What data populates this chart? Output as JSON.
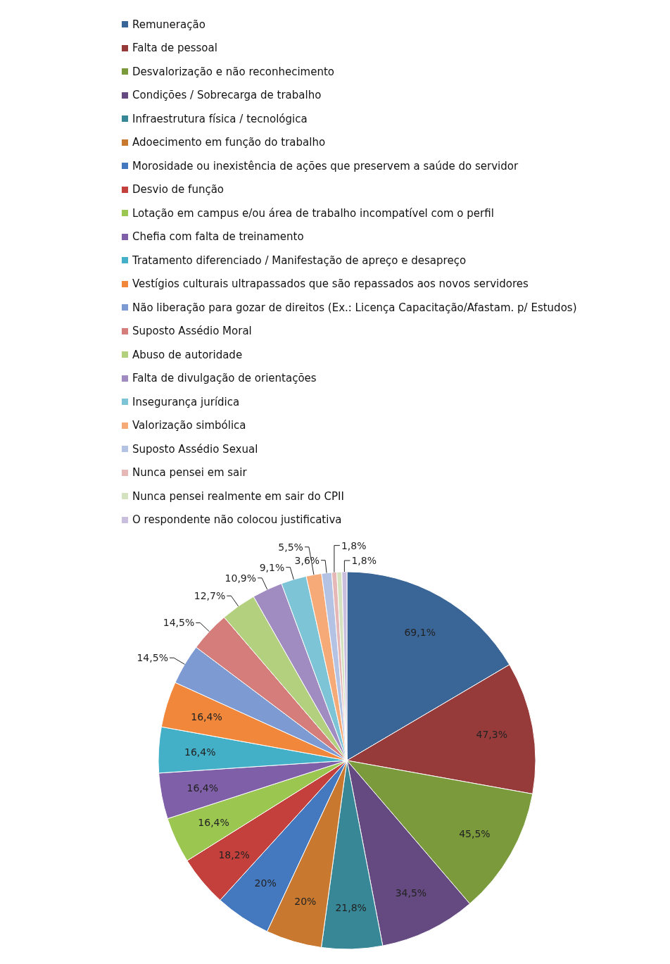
{
  "chart_data": {
    "type": "pie",
    "legend": "top left",
    "categories": [
      "Remuneração",
      "Falta de pessoal",
      "Desvalorização e não reconhecimento",
      "Condições / Sobrecarga de trabalho",
      "Infraestrutura física / tecnológica",
      "Adoecimento em função do trabalho",
      "Morosidade ou inexistência  de ações que preservem a saúde do servidor",
      "Desvio de função",
      "Lotação em campus e/ou área de trabalho incompatível com o perfil",
      "Chefia com falta de treinamento",
      "Tratamento diferenciado / Manifestação de apreço e desapreço",
      "Vestígios culturais ultrapassados que são repassados aos novos servidores",
      "Não liberação para gozar de direitos (Ex.: Licença Capacitação/Afastam. p/ Estudos)",
      "Suposto Assédio Moral",
      "Abuso de autoridade",
      "Falta de divulgação de orientações",
      "Insegurança jurídica",
      "Valorização simbólica",
      "Suposto Assédio Sexual",
      "Nunca pensei em sair",
      "Nunca pensei realmente em sair do CPII",
      "O respondente não colocou justificativa"
    ],
    "values": [
      69.1,
      47.3,
      45.5,
      34.5,
      21.8,
      20,
      20,
      18.2,
      16.4,
      16.4,
      16.4,
      16.4,
      14.5,
      14.5,
      12.7,
      10.9,
      9.1,
      5.5,
      3.6,
      1.8,
      1.8,
      1.8
    ],
    "value_labels": [
      "69,1%",
      "47,3%",
      "45,5%",
      "34,5%",
      "21,8%",
      "20%",
      "20%",
      "18,2%",
      "16,4%",
      "16,4%",
      "16,4%",
      "16,4%",
      "14,5%",
      "14,5%",
      "12,7%",
      "10,9%",
      "9,1%",
      "5,5%",
      "3,6%",
      "1,8%",
      null,
      "1,8%"
    ],
    "colors": [
      "#3a6597",
      "#973b3a",
      "#7a9a3c",
      "#644a80",
      "#378797",
      "#c8792f",
      "#4479c0",
      "#c4403c",
      "#9bc650",
      "#7f5fa8",
      "#43b0c8",
      "#f0873a",
      "#7d9ad3",
      "#d57d7b",
      "#b3d07e",
      "#a18cc2",
      "#7ec4d7",
      "#f6aa78",
      "#b4c3e4",
      "#e5b7b6",
      "#d4e2c0",
      "#c9bedd"
    ]
  }
}
